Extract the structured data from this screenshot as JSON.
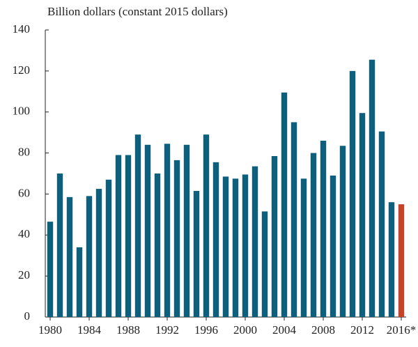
{
  "chart_data": {
    "type": "bar",
    "title": "Billion dollars (constant 2015 dollars)",
    "categories": [
      "1980",
      null,
      null,
      null,
      "1984",
      null,
      null,
      null,
      "1988",
      null,
      null,
      null,
      "1992",
      null,
      null,
      null,
      "1996",
      null,
      null,
      null,
      "2000",
      null,
      null,
      null,
      "2004",
      null,
      null,
      null,
      "2008",
      null,
      null,
      null,
      "2012",
      null,
      null,
      null,
      "2016*"
    ],
    "values": [
      46.5,
      70,
      58.5,
      34,
      59,
      62.5,
      67,
      79,
      79,
      89,
      84,
      70,
      84.5,
      76.5,
      84,
      61.5,
      89,
      75.5,
      68.5,
      67.5,
      69.5,
      73.5,
      51.5,
      78.5,
      109.5,
      95,
      67.5,
      80,
      86,
      69,
      83.5,
      120,
      99.5,
      125.5,
      90.5,
      56,
      55
    ],
    "colors": [
      "#0d5f7b",
      "#0d5f7b",
      "#0d5f7b",
      "#0d5f7b",
      "#0d5f7b",
      "#0d5f7b",
      "#0d5f7b",
      "#0d5f7b",
      "#0d5f7b",
      "#0d5f7b",
      "#0d5f7b",
      "#0d5f7b",
      "#0d5f7b",
      "#0d5f7b",
      "#0d5f7b",
      "#0d5f7b",
      "#0d5f7b",
      "#0d5f7b",
      "#0d5f7b",
      "#0d5f7b",
      "#0d5f7b",
      "#0d5f7b",
      "#0d5f7b",
      "#0d5f7b",
      "#0d5f7b",
      "#0d5f7b",
      "#0d5f7b",
      "#0d5f7b",
      "#0d5f7b",
      "#0d5f7b",
      "#0d5f7b",
      "#0d5f7b",
      "#0d5f7b",
      "#0d5f7b",
      "#0d5f7b",
      "#0d5f7b",
      "#c2452b"
    ],
    "ylim": [
      0,
      140
    ],
    "yticks": [
      0,
      20,
      40,
      60,
      80,
      100,
      120,
      140
    ],
    "grid": false
  }
}
